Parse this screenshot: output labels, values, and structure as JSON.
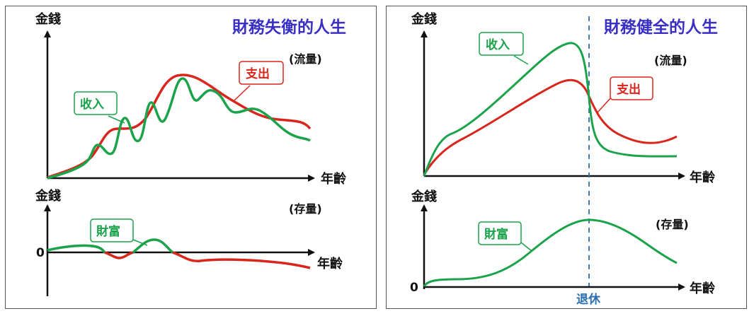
{
  "left": {
    "title": "財務失衡的人生",
    "top_chart": {
      "y_label": "金錢",
      "x_label": "年齡",
      "paren_label": "(流量)",
      "income_label": "收入",
      "expense_label": "支出"
    },
    "bottom_chart": {
      "y_label": "金錢",
      "x_label": "年齡",
      "paren_label": "(存量)",
      "zero_label": "0",
      "wealth_label": "財富"
    }
  },
  "right": {
    "title": "財務健全的人生",
    "top_chart": {
      "y_label": "金錢",
      "x_label": "年齡",
      "paren_label": "(流量)",
      "income_label": "收入",
      "expense_label": "支出"
    },
    "bottom_chart": {
      "y_label": "金錢",
      "x_label": "年齡",
      "paren_label": "(存量)",
      "zero_label": "0",
      "wealth_label": "財富",
      "retire_label": "退休"
    }
  },
  "colors": {
    "income": "#1aa34a",
    "expense": "#d9261c",
    "title": "#3a2fc4",
    "retire": "#2b6fb0",
    "axis": "#111111"
  }
}
